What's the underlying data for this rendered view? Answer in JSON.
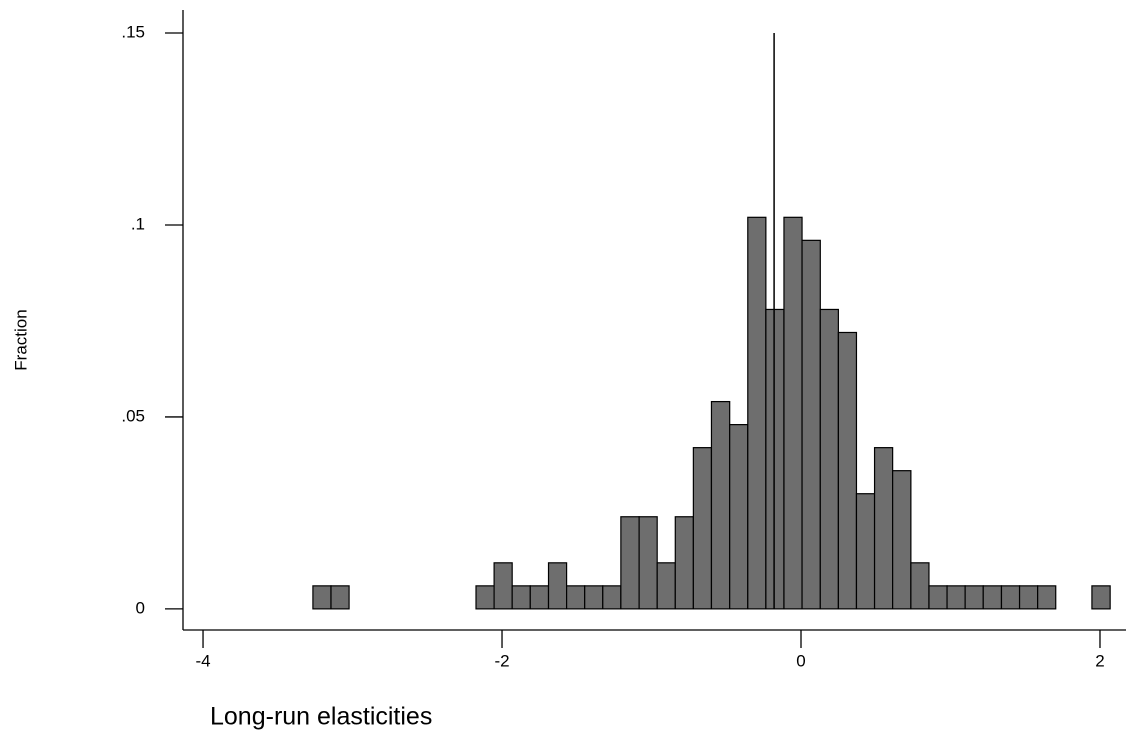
{
  "chart_data": {
    "type": "histogram",
    "y_label": "Fraction",
    "x_label": "Long-run elasticities",
    "bins": [
      -3.265,
      -3.144,
      -3.023,
      -2.901,
      -2.78,
      -2.659,
      -2.538,
      -2.417,
      -2.295,
      -2.174,
      -2.053,
      -1.932,
      -1.811,
      -1.689,
      -1.568,
      -1.447,
      -1.326,
      -1.205,
      -1.083,
      -0.962,
      -0.841,
      -0.72,
      -0.599,
      -0.477,
      -0.356,
      -0.235,
      -0.114,
      0.007,
      0.129,
      0.25,
      0.371,
      0.492,
      0.613,
      0.735,
      0.856,
      0.977,
      1.098,
      1.219,
      1.341,
      1.462,
      1.583,
      1.704,
      1.825,
      1.946,
      2.068
    ],
    "values": [
      0.006,
      0.006,
      0,
      0,
      0,
      0,
      0,
      0,
      0,
      0.006,
      0.012,
      0.006,
      0.006,
      0.012,
      0.006,
      0.006,
      0.006,
      0.024,
      0.024,
      0.012,
      0.024,
      0.042,
      0.054,
      0.048,
      0.102,
      0.078,
      0.102,
      0.096,
      0.078,
      0.072,
      0.03,
      0.042,
      0.036,
      0.012,
      0.006,
      0.006,
      0.006,
      0.006,
      0.006,
      0.006,
      0.006,
      0,
      0,
      0.006
    ],
    "color": "#6e6e6e",
    "vline": -0.18,
    "xlim": [
      -4.134,
      2.174
    ],
    "ylim": [
      -0.0055,
      0.156
    ],
    "xticks": [
      -4,
      -2,
      0,
      2
    ],
    "yticks": [
      0,
      {
        "value": 0.05,
        "label": ".05"
      },
      {
        "value": 0.1,
        "label": ".1"
      },
      {
        "value": 0.15,
        "label": ".15"
      }
    ]
  }
}
